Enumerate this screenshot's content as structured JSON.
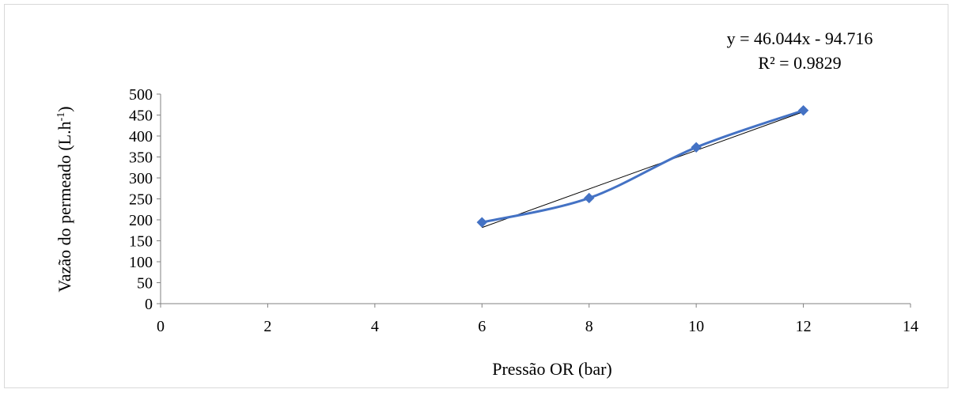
{
  "chart_data": {
    "type": "scatter",
    "title": "",
    "xlabel": "Pressão OR (bar)",
    "ylabel_main": "Vazão  do permeado (L.h",
    "ylabel_sup": "-1",
    "ylabel_end": ")",
    "xlim": [
      0,
      14
    ],
    "ylim": [
      0,
      500
    ],
    "x_ticks": [
      0,
      2,
      4,
      6,
      8,
      10,
      12,
      14
    ],
    "y_ticks": [
      0,
      50,
      100,
      150,
      200,
      250,
      300,
      350,
      400,
      450,
      500
    ],
    "grid": false,
    "series": [
      {
        "marker": "diamond",
        "line": "smoothed",
        "color": "#4472c4",
        "x": [
          6,
          8,
          10,
          12
        ],
        "y": [
          194,
          252,
          373,
          461
        ]
      }
    ],
    "trendline": {
      "color": "#000000",
      "slope": 46.044,
      "intercept": -94.716,
      "x_range": [
        6,
        12
      ]
    },
    "equation_text": "y = 46.044x - 94.716",
    "r2_text": "R² = 0.9829"
  }
}
